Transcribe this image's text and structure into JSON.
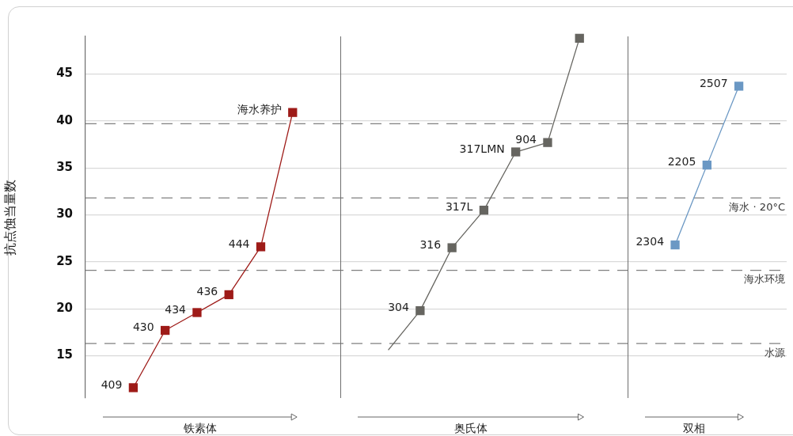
{
  "chart_data": {
    "type": "line",
    "ylabel": "抗点蚀当量数",
    "categories": [
      null,
      null,
      null,
      null,
      null,
      null,
      null,
      null,
      null,
      null,
      null,
      null,
      null,
      null,
      null,
      null,
      null,
      null,
      null,
      null,
      null,
      null
    ],
    "ylim": [
      10.5,
      49
    ],
    "yticks": [
      15,
      20,
      25,
      30,
      35,
      40,
      45
    ],
    "grid": "y",
    "tick_labels": "y",
    "marker": "square",
    "series": [
      {
        "color": "#9e1b18",
        "values": [
          null,
          11.6,
          17.7,
          19.6,
          21.5,
          26.6,
          40.9,
          null,
          null,
          null,
          null,
          null,
          null,
          null,
          null,
          null,
          null,
          null,
          null,
          null,
          null,
          null
        ]
      },
      {
        "color": "#666560",
        "marker": "none",
        "values": [
          null,
          null,
          null,
          null,
          null,
          null,
          null,
          null,
          null,
          15.6,
          19.8,
          26.5,
          30.5,
          36.7,
          37.7,
          48.8,
          null,
          null,
          null,
          null,
          null,
          null
        ]
      },
      {
        "type": "scatter",
        "color": "#666560",
        "values": [
          null,
          null,
          null,
          null,
          null,
          null,
          null,
          null,
          null,
          null,
          19.8,
          26.5,
          30.5,
          36.7,
          37.7,
          null,
          null,
          null,
          null,
          null,
          null,
          null
        ]
      },
      {
        "color": "#6b98c4",
        "values": [
          null,
          null,
          null,
          null,
          null,
          null,
          null,
          null,
          null,
          null,
          null,
          null,
          null,
          null,
          null,
          null,
          null,
          null,
          26.8,
          35.3,
          43.7,
          null
        ]
      },
      {
        "type": "scatter",
        "color": "#666560",
        "values": [
          null,
          null,
          null,
          null,
          null,
          null,
          null,
          null,
          null,
          null,
          null,
          null,
          null,
          null,
          null,
          48.8,
          null,
          null,
          null,
          null,
          null,
          null
        ]
      }
    ],
    "ref_lines": [
      {
        "axis": "y",
        "value": 39.7,
        "color": "#808080",
        "line_style": "dashed"
      },
      {
        "axis": "y",
        "value": 31.8,
        "label": "海水 · 20°C",
        "color": "#808080",
        "line_style": "dashed"
      },
      {
        "axis": "y",
        "value": 24.1,
        "label": "海水环境",
        "color": "#808080",
        "line_style": "dashed"
      },
      {
        "axis": "y",
        "value": 16.3,
        "label": "水源",
        "color": "#808080",
        "line_style": "dashed"
      }
    ],
    "annotations": [
      "铁素体",
      "奥氏体",
      "双相",
      "409",
      "430",
      "434",
      "436",
      "444",
      "海水养护",
      "304",
      "316",
      "317L",
      "317LMN",
      "904",
      "2304",
      "2205",
      "2507"
    ]
  }
}
